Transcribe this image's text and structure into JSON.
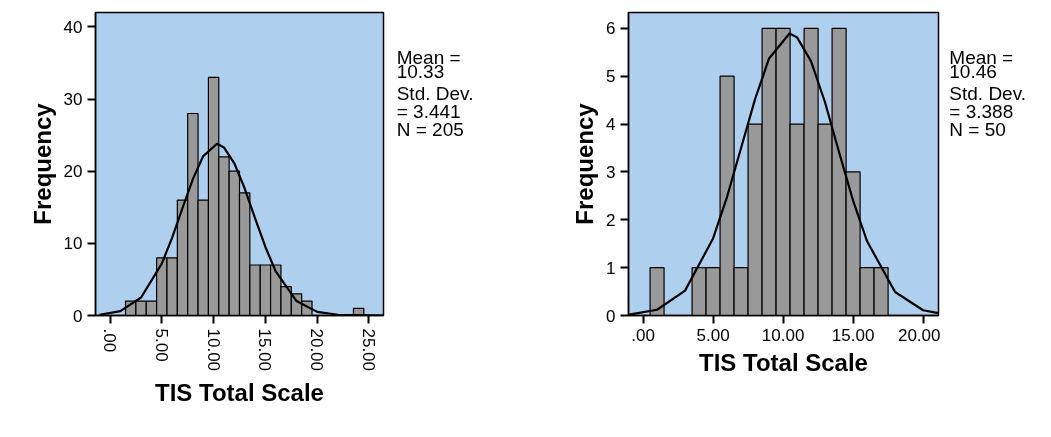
{
  "chart_data": [
    {
      "type": "histogram",
      "xlabel": "TIS Total Scale",
      "ylabel": "Frequency",
      "xlim": [
        -1.4,
        26.4
      ],
      "ylim": [
        0,
        42
      ],
      "xticks": [
        {
          "value": 0,
          "label": ".00"
        },
        {
          "value": 5,
          "label": "5.00"
        },
        {
          "value": 10,
          "label": "10.00"
        },
        {
          "value": 15,
          "label": "15.00"
        },
        {
          "value": 20,
          "label": "20.00"
        },
        {
          "value": 25,
          "label": "25.00"
        }
      ],
      "yticks": [
        0,
        10,
        20,
        30,
        40
      ],
      "annotations": [
        "Mean =\n10.33\nStd. Dev.\n= 3.441\nN = 205"
      ],
      "series": [
        {
          "type": "histogram",
          "color": "#999999",
          "bins": [
            1.5,
            2.5,
            3.5,
            4.5,
            5.5,
            6.5,
            7.5,
            8.5,
            9.5,
            10.5,
            11.5,
            12.5,
            13.5,
            14.5,
            15.5,
            16.5,
            17.5,
            18.5,
            19.5,
            20.5,
            21.5,
            22.5,
            23.5,
            24.5
          ],
          "values": [
            2,
            2,
            2,
            8,
            8,
            16,
            28,
            16,
            33,
            22,
            20,
            17,
            7,
            7,
            7,
            4,
            3,
            2,
            0,
            0,
            0,
            0,
            1
          ]
        },
        {
          "type": "line",
          "color": "#000000",
          "x": [
            -1,
            1,
            3,
            5,
            6,
            7,
            8,
            9,
            10.33,
            11,
            12,
            13,
            14,
            15,
            16,
            18,
            20,
            22,
            26.4
          ],
          "values": [
            0.1,
            0.6,
            2.5,
            7.2,
            10.8,
            14.9,
            18.9,
            22.1,
            23.8,
            23.3,
            21.1,
            17.6,
            13.5,
            9.5,
            6.1,
            2.0,
            0.5,
            0.1,
            0
          ]
        }
      ]
    },
    {
      "type": "histogram",
      "xlabel": "TIS Total Scale",
      "ylabel": "Frequency",
      "xlim": [
        -1.04,
        21.1
      ],
      "ylim": [
        0,
        6.33
      ],
      "xticks": [
        {
          "value": 0,
          "label": ".00"
        },
        {
          "value": 5,
          "label": "5.00"
        },
        {
          "value": 10,
          "label": "10.00"
        },
        {
          "value": 15,
          "label": "15.00"
        },
        {
          "value": 20,
          "label": "20.00"
        }
      ],
      "yticks": [
        0,
        1,
        2,
        3,
        4,
        5,
        6
      ],
      "annotations": [
        "Mean =\n10.46\nStd. Dev.\n= 3.388\nN = 50"
      ],
      "series": [
        {
          "type": "histogram",
          "color": "#999999",
          "bins": [
            0.5,
            1.5,
            2.5,
            3.5,
            4.5,
            5.5,
            6.5,
            7.5,
            8.5,
            9.5,
            10.5,
            11.5,
            12.5,
            13.5,
            14.5,
            15.5,
            16.5,
            17.5
          ],
          "values": [
            1,
            0,
            0,
            1,
            1,
            5,
            1,
            4,
            6,
            6,
            4,
            6,
            4,
            6,
            3,
            1,
            1
          ]
        },
        {
          "type": "line",
          "color": "#000000",
          "x": [
            -1,
            1,
            3,
            5,
            6,
            7,
            8,
            9,
            10.46,
            11,
            12,
            13,
            14,
            15,
            16,
            18,
            20,
            21.1
          ],
          "values": [
            0.02,
            0.12,
            0.52,
            1.61,
            2.48,
            3.5,
            4.52,
            5.37,
            5.89,
            5.81,
            5.31,
            4.45,
            3.41,
            2.4,
            1.55,
            0.49,
            0.11,
            0.05
          ]
        }
      ]
    }
  ]
}
